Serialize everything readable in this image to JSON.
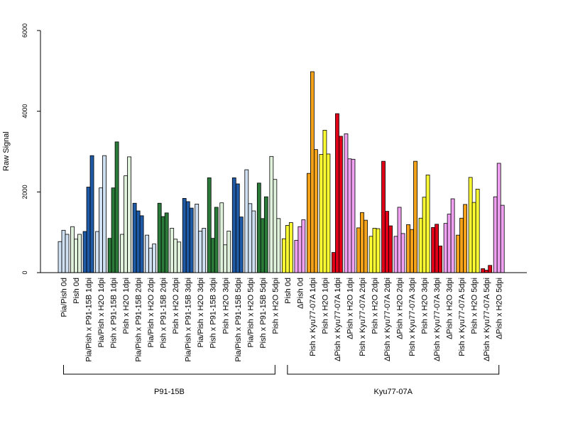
{
  "chart_data": {
    "type": "bar",
    "title": "",
    "xlabel": "",
    "ylabel": "Raw Signal",
    "ylim": [
      0,
      6000
    ],
    "yticks": [
      0,
      2000,
      4000,
      6000
    ],
    "grid": false,
    "legend": "none",
    "colors": {
      "light_blue": "#cfe0f2",
      "dark_blue": "#1f5aa6",
      "light_green": "#e0f2dc",
      "dark_green": "#2b7a3a",
      "yellow": "#ffff33",
      "pink": "#f0a0f0",
      "orange": "#f3a21a",
      "red": "#e00018"
    },
    "categories": [
      {
        "label": "Pia/Pish 0d",
        "values": [
          770,
          1050,
          950
        ],
        "color": "light_blue"
      },
      {
        "label": "Pish 0d",
        "values": [
          1140,
          830,
          950
        ],
        "color": "light_green"
      },
      {
        "label": "Pia/Pish x P91-15B 1dpi",
        "values": [
          1020,
          2120,
          2900
        ],
        "color": "dark_blue"
      },
      {
        "label": "Pia/Pish x H2O 1dpi",
        "values": [
          1020,
          2100,
          2900
        ],
        "color": "light_blue"
      },
      {
        "label": "Pish x P91-15B 1dpi",
        "values": [
          850,
          2100,
          3240
        ],
        "color": "dark_green"
      },
      {
        "label": "Pish x H2O 1dpi",
        "values": [
          950,
          2400,
          2870
        ],
        "color": "light_green"
      },
      {
        "label": "Pia/Pish x P91-15B 2dpi",
        "values": [
          1720,
          1530,
          1410
        ],
        "color": "dark_blue"
      },
      {
        "label": "Pia/Pish x H2O 2dpi",
        "values": [
          930,
          610,
          710
        ],
        "color": "light_blue"
      },
      {
        "label": "Pish x P91-15B 2dpi",
        "values": [
          1720,
          1390,
          1480
        ],
        "color": "dark_green"
      },
      {
        "label": "Pish x H2O 2dpi",
        "values": [
          1100,
          830,
          760
        ],
        "color": "light_green"
      },
      {
        "label": "Pia/Pish x P91-15B 3dpi",
        "values": [
          1840,
          1760,
          1600
        ],
        "color": "dark_blue"
      },
      {
        "label": "Pia/Pish x H2O 3dpi",
        "values": [
          1700,
          1030,
          1100
        ],
        "color": "light_blue"
      },
      {
        "label": "Pish x P91-15B 3dpi",
        "values": [
          2350,
          850,
          1620
        ],
        "color": "dark_green"
      },
      {
        "label": "Pish x H2O 3dpi",
        "values": [
          1730,
          690,
          1030
        ],
        "color": "light_green"
      },
      {
        "label": "Pia/Pish x P91-15B 5dpi",
        "values": [
          2350,
          2200,
          1380
        ],
        "color": "dark_blue"
      },
      {
        "label": "Pia/Pish x H2O 5dpi",
        "values": [
          2550,
          1710,
          1530
        ],
        "color": "light_blue"
      },
      {
        "label": "Pish x P91-15B 5dpi",
        "values": [
          2220,
          1340,
          1880
        ],
        "color": "dark_green"
      },
      {
        "label": "Pish x H2O 5dpi",
        "values": [
          2880,
          2310,
          1340
        ],
        "color": "light_green"
      },
      {
        "label": "Pish 0d",
        "values": [
          840,
          1170,
          1240
        ],
        "color": "yellow"
      },
      {
        "label": "ΔPish 0d",
        "values": [
          800,
          1140,
          1310
        ],
        "color": "pink"
      },
      {
        "label": "Pish x Kyu77-07A 1dpi",
        "values": [
          2460,
          4980,
          3050
        ],
        "color": "orange"
      },
      {
        "label": "Pish x H2O 1dpi",
        "values": [
          2930,
          3530,
          2940
        ],
        "color": "yellow"
      },
      {
        "label": "ΔPish x Kyu77-07A 1dpi",
        "values": [
          500,
          3940,
          3380
        ],
        "color": "red"
      },
      {
        "label": "ΔPish x H2O 1dpi",
        "values": [
          3440,
          2820,
          2810
        ],
        "color": "pink"
      },
      {
        "label": "Pish x Kyu77-07A 2dpi",
        "values": [
          1110,
          1490,
          1300
        ],
        "color": "orange"
      },
      {
        "label": "Pish x H2O 2dpi",
        "values": [
          900,
          1100,
          1090
        ],
        "color": "yellow"
      },
      {
        "label": "ΔPish x Kyu77-07A 2dpi",
        "values": [
          2760,
          1520,
          1160
        ],
        "color": "red"
      },
      {
        "label": "ΔPish x H2O 2dpi",
        "values": [
          900,
          1620,
          970
        ],
        "color": "pink"
      },
      {
        "label": "Pish x Kyu77-07A 3dpi",
        "values": [
          1190,
          1070,
          2760
        ],
        "color": "orange"
      },
      {
        "label": "Pish x H2O 3dpi",
        "values": [
          1350,
          1870,
          2420
        ],
        "color": "yellow"
      },
      {
        "label": "ΔPish x Kyu77-07A 3dpi",
        "values": [
          1120,
          1200,
          660
        ],
        "color": "red"
      },
      {
        "label": "ΔPish x H2O 3dpi",
        "values": [
          1220,
          1450,
          1830
        ],
        "color": "pink"
      },
      {
        "label": "Pish x Kyu77-07A 5dpi",
        "values": [
          930,
          1350,
          1690
        ],
        "color": "orange"
      },
      {
        "label": "Pish x H2O 5dpi",
        "values": [
          2360,
          1740,
          2070
        ],
        "color": "yellow"
      },
      {
        "label": "ΔPish x Kyu77-07A 5dpi",
        "values": [
          100,
          60,
          180
        ],
        "color": "red"
      },
      {
        "label": "ΔPish x H2O 5dpi",
        "values": [
          1880,
          2710,
          1670
        ],
        "color": "pink"
      }
    ],
    "groups": [
      {
        "label": "P91-15B",
        "from": 0,
        "to": 17
      },
      {
        "label": "Kyu77-07A",
        "from": 18,
        "to": 35
      }
    ]
  }
}
